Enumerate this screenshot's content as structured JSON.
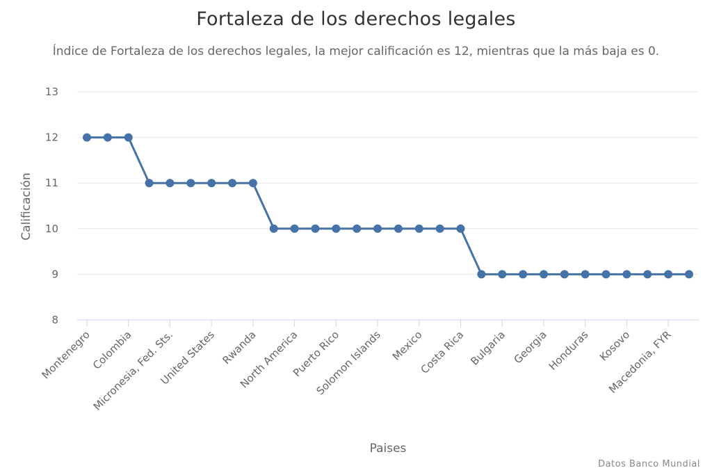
{
  "title": "Fortaleza de los derechos legales",
  "subtitle": "Índice de Fortaleza de los derechos legales, la mejor calificación es 12, mientras que la más baja es 0.",
  "credit": "Datos Banco Mundial",
  "colors": {
    "series": "#4572a7",
    "grid": "#e6e6e6",
    "axis": "#ccd6eb",
    "text": "#666666",
    "title": "#333333"
  },
  "chart_data": {
    "type": "line",
    "xlabel": "Paises",
    "ylabel": "Calificación",
    "ylim": [
      8,
      13
    ],
    "yticks": [
      8,
      9,
      10,
      11,
      12,
      13
    ],
    "grid": true,
    "legend": "none",
    "x_tick_labels": [
      "Montenegro",
      "Colombia",
      "Micronesia, Fed. Sts.",
      "United States",
      "Rwanda",
      "North America",
      "Puerto Rico",
      "Solomon Islands",
      "Mexico",
      "Costa Rica",
      "Bulgaria",
      "Georgia",
      "Honduras",
      "Kosovo",
      "Macedonia, FYR"
    ],
    "x_tick_every": 2,
    "points_count": 30,
    "series": [
      {
        "values": [
          12,
          12,
          12,
          11,
          11,
          11,
          11,
          11,
          11,
          10,
          10,
          10,
          10,
          10,
          10,
          10,
          10,
          10,
          10,
          9,
          9,
          9,
          9,
          9,
          9,
          9,
          9,
          9,
          9,
          9
        ]
      }
    ]
  }
}
